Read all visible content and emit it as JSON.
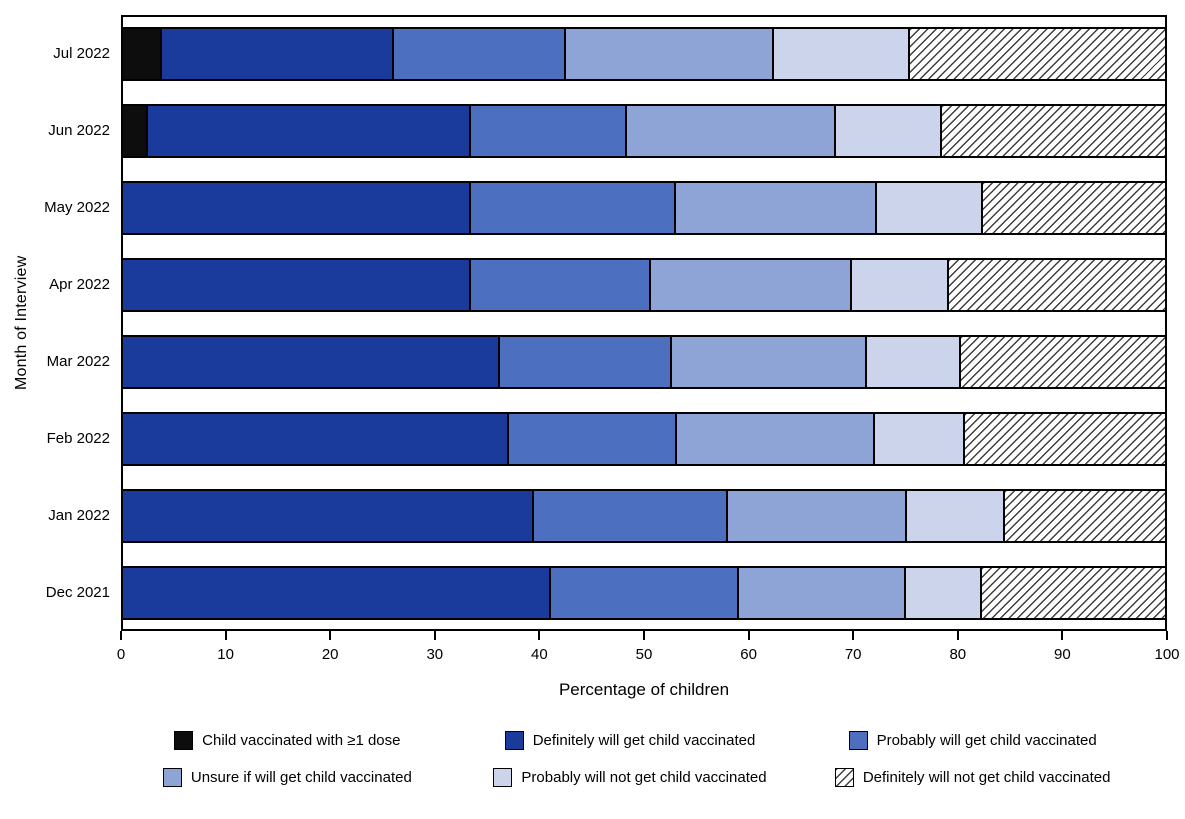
{
  "chart_data": {
    "type": "bar",
    "orientation": "horizontal",
    "stacked": true,
    "title": "",
    "xlabel": "Percentage of children",
    "ylabel": "Month of Interview",
    "xlim": [
      0,
      100
    ],
    "xticks": [
      0,
      10,
      20,
      30,
      40,
      50,
      60,
      70,
      80,
      90,
      100
    ],
    "grid": false,
    "legend_position": "bottom",
    "frame_color": "#000000",
    "categories": [
      "Jul 2022",
      "Jun 2022",
      "May 2022",
      "Apr 2022",
      "Mar 2022",
      "Feb 2022",
      "Jan 2022",
      "Dec 2021"
    ],
    "series": [
      {
        "name": "Child vaccinated with ≥1 dose",
        "color": "#0d0d0d",
        "pattern": "solid",
        "values": [
          3.7,
          2.4,
          0,
          0,
          0,
          0,
          0,
          0
        ]
      },
      {
        "name": "Definitely will get child vaccinated",
        "color": "#1a3b9c",
        "pattern": "solid",
        "values": [
          22.3,
          31.0,
          33.4,
          33.4,
          36.2,
          37.0,
          39.4,
          41.1
        ]
      },
      {
        "name": "Probably will get child vaccinated",
        "color": "#4c6fbf",
        "pattern": "solid",
        "values": [
          16.5,
          15.0,
          19.7,
          17.3,
          16.5,
          16.2,
          18.7,
          18.0
        ]
      },
      {
        "name": "Unsure if will get child vaccinated",
        "color": "#8fa4d6",
        "pattern": "solid",
        "values": [
          20.0,
          20.0,
          19.3,
          19.3,
          18.7,
          19.0,
          17.1,
          16.0
        ]
      },
      {
        "name": "Probably will not get child vaccinated",
        "color": "#ccd4ec",
        "pattern": "solid",
        "values": [
          13.0,
          10.2,
          10.1,
          9.3,
          9.0,
          8.6,
          9.4,
          7.3
        ]
      },
      {
        "name": "Definitely will not get child vaccinated",
        "color": "#ffffff",
        "pattern": "hatch",
        "values": [
          24.5,
          21.4,
          17.5,
          20.7,
          19.6,
          19.2,
          15.4,
          17.6
        ]
      }
    ]
  }
}
